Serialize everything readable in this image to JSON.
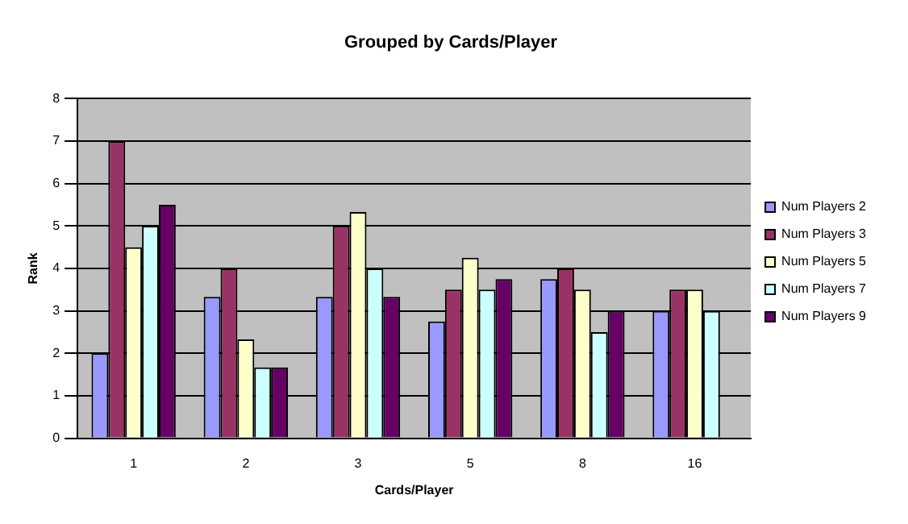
{
  "chart_data": {
    "type": "bar",
    "title": "Grouped by Cards/Player",
    "xlabel": "Cards/Player",
    "ylabel": "Rank",
    "categories": [
      "1",
      "2",
      "3",
      "5",
      "8",
      "16"
    ],
    "series": [
      {
        "name": "Num Players 2",
        "color": "#9999ff",
        "values": [
          2,
          3.33,
          3.33,
          2.75,
          3.75,
          3
        ]
      },
      {
        "name": "Num Players 3",
        "color": "#993366",
        "values": [
          7,
          4,
          5,
          3.5,
          4,
          3.5
        ]
      },
      {
        "name": "Num Players 5",
        "color": "#ffffcc",
        "values": [
          4.5,
          2.33,
          5.33,
          4.25,
          3.5,
          3.5
        ]
      },
      {
        "name": "Num Players 7",
        "color": "#ccffff",
        "values": [
          5,
          1.67,
          4,
          3.5,
          2.5,
          3
        ]
      },
      {
        "name": "Num Players 9",
        "color": "#660066",
        "values": [
          5.5,
          1.67,
          3.33,
          3.75,
          3,
          null
        ]
      }
    ],
    "ylim": [
      0,
      8
    ],
    "yticks": [
      0,
      1,
      2,
      3,
      4,
      5,
      6,
      7,
      8
    ],
    "grid": "y",
    "legend": "right"
  }
}
